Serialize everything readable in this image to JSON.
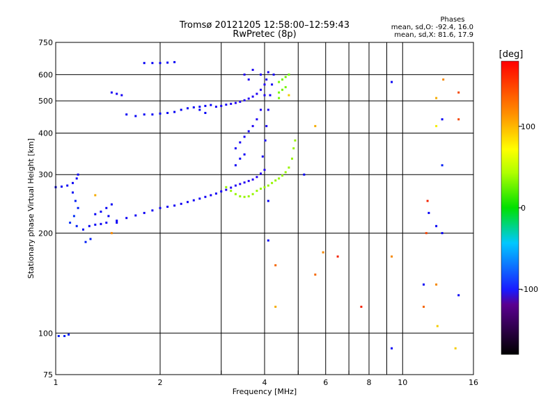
{
  "chart_data": {
    "type": "scatter",
    "title": "Tromsø 20121205 12:58:00–12:59:43",
    "subtitle": "RwPretec (8p)",
    "xlabel": "Frequency [MHz]",
    "ylabel": "Stationary phase Virtual Height [km]",
    "x_scale": "log",
    "y_scale": "log",
    "xlim": [
      1,
      16
    ],
    "ylim": [
      75,
      750
    ],
    "grid": true,
    "x_ticks_major": [
      1,
      2,
      4,
      6,
      8,
      10,
      16
    ],
    "x_ticks_minor": [
      3,
      5,
      7,
      9
    ],
    "y_ticks": [
      75,
      100,
      200,
      300,
      400,
      500,
      600,
      750
    ],
    "x_tick_labels": [
      "1",
      "2",
      "4",
      "6",
      "8",
      "10",
      "16"
    ],
    "y_tick_labels": [
      "75",
      "100",
      "200",
      "300",
      "400",
      "500",
      "600",
      "750"
    ],
    "stats": {
      "heading": "Phases",
      "line_o": "mean, sd,O: -92.4, 16.0",
      "line_x": "mean, sd,X:  81.6, 17.9"
    },
    "colorbar": {
      "label": "[deg]",
      "range": [
        -180,
        180
      ],
      "ticks": [
        100,
        0,
        -100
      ],
      "tick_labels": [
        "100",
        "0",
        "-100"
      ],
      "colormap": "rainbow"
    },
    "series": [
      {
        "points": [
          [
            1.0,
            275,
            -110
          ],
          [
            1.04,
            276,
            -110
          ],
          [
            1.08,
            278,
            -110
          ],
          [
            1.12,
            283,
            -112
          ],
          [
            1.15,
            292,
            -114
          ],
          [
            1.16,
            300,
            -115
          ],
          [
            1.12,
            265,
            -105
          ],
          [
            1.14,
            250,
            -100
          ],
          [
            1.16,
            238,
            -100
          ],
          [
            1.13,
            225,
            -95
          ],
          [
            1.1,
            215,
            -95
          ],
          [
            1.15,
            210,
            -100
          ]
        ]
      },
      {
        "points": [
          [
            1.02,
            98,
            -100
          ],
          [
            1.06,
            98,
            -100
          ],
          [
            1.09,
            99,
            -100
          ]
        ]
      },
      {
        "points": [
          [
            1.22,
            188,
            -100
          ],
          [
            1.26,
            192,
            -100
          ],
          [
            1.2,
            205,
            -105
          ],
          [
            1.25,
            210,
            -108
          ],
          [
            1.3,
            212,
            -110
          ],
          [
            1.35,
            213,
            -112
          ],
          [
            1.4,
            215,
            -115
          ],
          [
            1.5,
            218,
            -115
          ],
          [
            1.6,
            222,
            -115
          ],
          [
            1.7,
            226,
            -115
          ],
          [
            1.8,
            230,
            -115
          ],
          [
            1.9,
            234,
            -115
          ],
          [
            2.0,
            238,
            -115
          ],
          [
            2.1,
            240,
            -115
          ],
          [
            2.2,
            242,
            -118
          ],
          [
            2.3,
            245,
            -118
          ],
          [
            2.4,
            248,
            -118
          ],
          [
            2.5,
            251,
            -118
          ],
          [
            2.6,
            254,
            -118
          ],
          [
            2.7,
            257,
            -118
          ],
          [
            2.8,
            260,
            -120
          ],
          [
            2.9,
            263,
            -120
          ],
          [
            3.0,
            267,
            -120
          ],
          [
            3.1,
            270,
            -125
          ],
          [
            3.2,
            274,
            -125
          ],
          [
            3.3,
            278,
            -128
          ],
          [
            3.4,
            281,
            -130
          ],
          [
            3.5,
            284,
            -130
          ],
          [
            3.6,
            287,
            -130
          ],
          [
            3.7,
            290,
            -130
          ],
          [
            3.8,
            295,
            -130
          ],
          [
            3.9,
            302,
            -130
          ],
          [
            4.0,
            310,
            -130
          ]
        ]
      },
      {
        "points": [
          [
            1.3,
            228,
            -110
          ],
          [
            1.35,
            232,
            -110
          ],
          [
            1.4,
            238,
            -110
          ],
          [
            1.45,
            244,
            -110
          ],
          [
            1.5,
            215,
            -115
          ],
          [
            1.42,
            225,
            -110
          ]
        ]
      },
      {
        "points": [
          [
            3.3,
            360,
            -120
          ],
          [
            3.4,
            375,
            -120
          ],
          [
            3.5,
            390,
            -120
          ],
          [
            3.6,
            405,
            -120
          ],
          [
            3.3,
            320,
            -115
          ],
          [
            3.4,
            335,
            -115
          ],
          [
            3.5,
            345,
            -115
          ],
          [
            3.7,
            420,
            -125
          ],
          [
            3.8,
            440,
            -125
          ],
          [
            3.9,
            470,
            -125
          ],
          [
            4.0,
            520,
            -125
          ],
          [
            3.95,
            340,
            -120
          ],
          [
            4.02,
            380,
            -120
          ],
          [
            4.05,
            420,
            -120
          ],
          [
            4.1,
            470,
            -120
          ],
          [
            4.15,
            520,
            -120
          ],
          [
            4.2,
            560,
            -120
          ],
          [
            4.25,
            600,
            -120
          ],
          [
            4.1,
            610,
            -125
          ],
          [
            3.9,
            600,
            -125
          ]
        ]
      },
      {
        "points": [
          [
            2.3,
            470,
            -110
          ],
          [
            2.4,
            475,
            -110
          ],
          [
            2.5,
            478,
            -110
          ],
          [
            2.6,
            480,
            -110
          ],
          [
            2.7,
            483,
            -110
          ],
          [
            2.8,
            486,
            -110
          ],
          [
            2.9,
            480,
            -120
          ],
          [
            3.0,
            483,
            -120
          ],
          [
            3.1,
            487,
            -120
          ],
          [
            3.2,
            490,
            -125
          ],
          [
            3.3,
            493,
            -125
          ],
          [
            3.4,
            497,
            -125
          ],
          [
            3.5,
            502,
            -125
          ],
          [
            3.6,
            508,
            -125
          ],
          [
            3.7,
            515,
            -125
          ],
          [
            3.8,
            525,
            -125
          ],
          [
            3.9,
            540,
            -125
          ],
          [
            4.0,
            560,
            -125
          ],
          [
            4.05,
            580,
            -125
          ],
          [
            3.5,
            600,
            -125
          ],
          [
            3.6,
            580,
            -125
          ],
          [
            3.7,
            620,
            -125
          ]
        ]
      },
      {
        "points": [
          [
            1.45,
            530,
            -120
          ],
          [
            1.5,
            525,
            -120
          ],
          [
            1.55,
            520,
            -120
          ],
          [
            1.6,
            455,
            -110
          ],
          [
            1.7,
            450,
            -110
          ],
          [
            1.8,
            455,
            -110
          ],
          [
            1.9,
            455,
            -110
          ],
          [
            2.0,
            458,
            -110
          ],
          [
            2.1,
            460,
            -110
          ],
          [
            2.2,
            463,
            -110
          ],
          [
            2.6,
            470,
            -110
          ],
          [
            2.7,
            460,
            -110
          ]
        ]
      },
      {
        "points": [
          [
            1.8,
            650,
            -110
          ],
          [
            1.9,
            650,
            -110
          ],
          [
            2.0,
            650,
            -110
          ],
          [
            2.1,
            652,
            -110
          ],
          [
            2.2,
            654,
            -110
          ]
        ]
      },
      {
        "points": [
          [
            4.4,
            570,
            70
          ],
          [
            4.5,
            580,
            70
          ],
          [
            4.6,
            590,
            70
          ],
          [
            4.7,
            600,
            70
          ],
          [
            4.4,
            530,
            70
          ],
          [
            4.5,
            540,
            70
          ],
          [
            4.6,
            550,
            70
          ],
          [
            4.4,
            510,
            70
          ]
        ]
      },
      {
        "points": [
          [
            3.1,
            275,
            80
          ],
          [
            3.2,
            268,
            80
          ],
          [
            3.3,
            262,
            80
          ],
          [
            3.4,
            258,
            80
          ],
          [
            3.5,
            257,
            80
          ],
          [
            3.6,
            258,
            80
          ],
          [
            3.7,
            262,
            80
          ],
          [
            3.8,
            268,
            80
          ],
          [
            3.9,
            272,
            80
          ],
          [
            4.0,
            275,
            80
          ],
          [
            4.1,
            278,
            80
          ],
          [
            4.2,
            283,
            80
          ],
          [
            4.3,
            288,
            80
          ],
          [
            4.4,
            292,
            80
          ],
          [
            4.5,
            298,
            80
          ],
          [
            4.6,
            305,
            80
          ],
          [
            4.7,
            315,
            80
          ],
          [
            4.8,
            335,
            80
          ],
          [
            4.85,
            360,
            80
          ],
          [
            4.9,
            380,
            80
          ]
        ]
      },
      {
        "points": [
          [
            4.1,
            190,
            -110
          ],
          [
            4.3,
            160,
            150
          ],
          [
            4.3,
            120,
            130
          ],
          [
            5.6,
            150,
            150
          ],
          [
            5.9,
            175,
            140
          ],
          [
            6.5,
            170,
            170
          ],
          [
            7.6,
            120,
            170
          ],
          [
            9.3,
            90,
            -110
          ],
          [
            9.3,
            170,
            140
          ],
          [
            9.3,
            570,
            -110
          ],
          [
            11.5,
            140,
            -110
          ],
          [
            11.5,
            120,
            150
          ],
          [
            11.7,
            200,
            160
          ],
          [
            12.5,
            210,
            -110
          ],
          [
            12.5,
            140,
            140
          ],
          [
            12.6,
            105,
            120
          ],
          [
            13.0,
            200,
            -110
          ],
          [
            13.0,
            320,
            -100
          ],
          [
            13.0,
            440,
            -110
          ],
          [
            13.1,
            580,
            140
          ],
          [
            14.5,
            130,
            -110
          ],
          [
            14.5,
            530,
            160
          ],
          [
            14.5,
            440,
            160
          ],
          [
            14.2,
            90,
            120
          ],
          [
            12.5,
            420,
            110
          ],
          [
            12.5,
            510,
            130
          ],
          [
            11.8,
            250,
            170
          ],
          [
            11.9,
            230,
            -110
          ],
          [
            4.7,
            520,
            120
          ],
          [
            5.6,
            420,
            130
          ],
          [
            5.2,
            300,
            -110
          ],
          [
            4.1,
            250,
            -110
          ],
          [
            1.3,
            260,
            130
          ],
          [
            1.45,
            200,
            140
          ]
        ]
      }
    ]
  }
}
